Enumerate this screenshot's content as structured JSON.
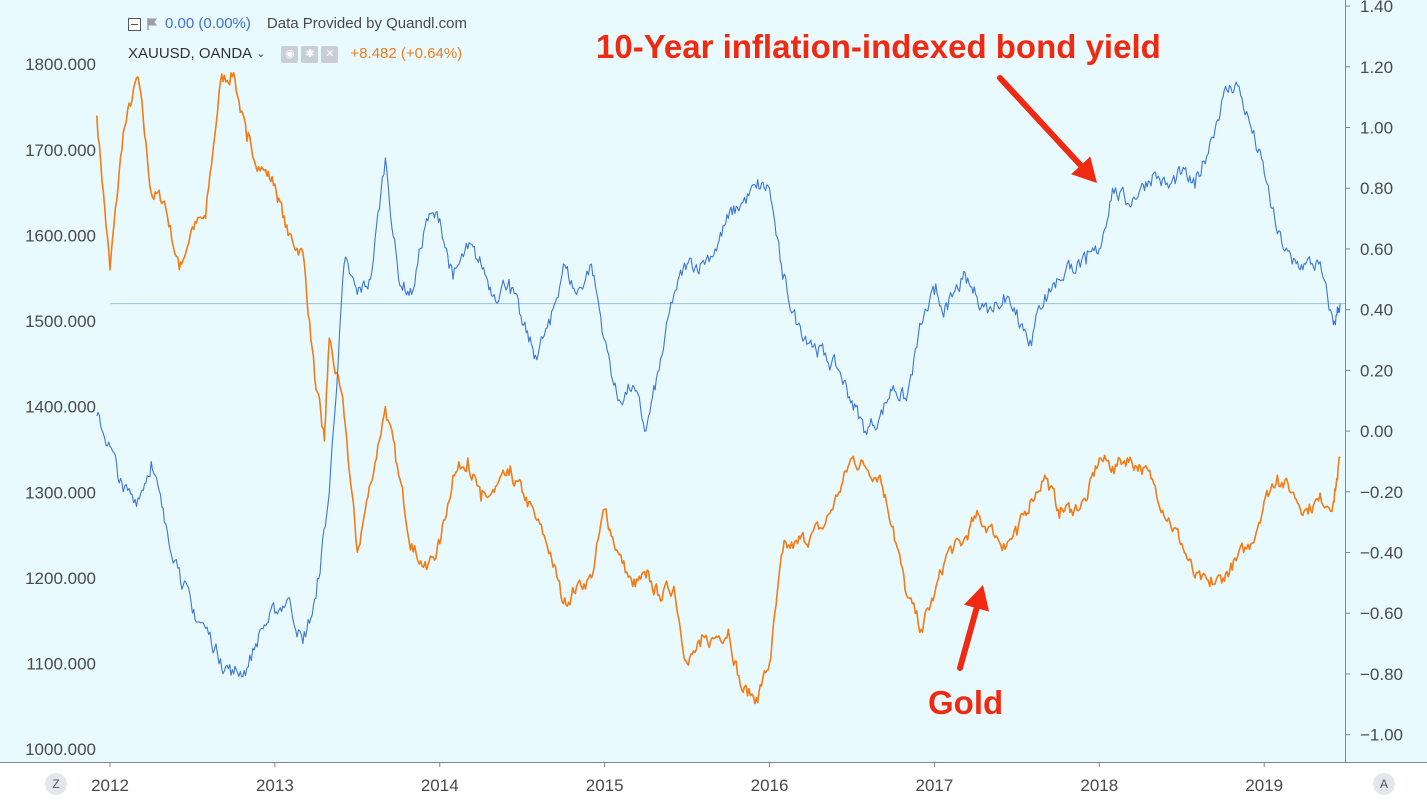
{
  "legend": {
    "row1": {
      "value": "0.00 (0.00%)",
      "source": "Data Provided by Quandl.com"
    },
    "row2": {
      "symbol": "XAUUSD, OANDA",
      "change": "+8.482 (+0.64%)"
    }
  },
  "annotations": {
    "bond_label": "10-Year inflation-indexed bond yield",
    "gold_label": "Gold"
  },
  "controls": {
    "left_corner": "Z",
    "right_corner": "A"
  },
  "colors": {
    "background": "#e8fafd",
    "gold": "#f47b16",
    "bond": "#3c76d6",
    "arrow": "#f02a12",
    "axis_line": "#7c8790"
  },
  "chart_data": {
    "type": "line",
    "title": "",
    "xlabel": "",
    "x_ticks": [
      "2012",
      "2013",
      "2014",
      "2015",
      "2016",
      "2017",
      "2018",
      "2019"
    ],
    "left_axis": {
      "ticks": [
        "1800.000",
        "1700.000",
        "1600.000",
        "1500.000",
        "1400.000",
        "1300.000",
        "1200.000",
        "1100.000",
        "1000.000"
      ],
      "range": [
        985,
        1875
      ]
    },
    "right_axis": {
      "ticks": [
        "1.40",
        "1.20",
        "1.00",
        "0.80",
        "0.60",
        "0.40",
        "0.20",
        "0.00",
        "−0.20",
        "−0.40",
        "−0.60",
        "−0.80",
        "−1.00"
      ],
      "range": [
        -1.09,
        1.42
      ]
    },
    "crosshair": {
      "axis": "right",
      "value": 0.42
    },
    "series": [
      {
        "axis": "left",
        "x": [
          2011.92,
          2012.0,
          2012.08,
          2012.17,
          2012.25,
          2012.33,
          2012.42,
          2012.5,
          2012.58,
          2012.67,
          2012.75,
          2012.83,
          2012.92,
          2013.0,
          2013.08,
          2013.17,
          2013.25,
          2013.3,
          2013.33,
          2013.42,
          2013.5,
          2013.58,
          2013.67,
          2013.75,
          2013.83,
          2013.92,
          2014.0,
          2014.08,
          2014.17,
          2014.25,
          2014.33,
          2014.42,
          2014.5,
          2014.58,
          2014.67,
          2014.75,
          2014.83,
          2014.92,
          2015.0,
          2015.08,
          2015.17,
          2015.25,
          2015.33,
          2015.42,
          2015.5,
          2015.58,
          2015.67,
          2015.75,
          2015.83,
          2015.92,
          2016.0,
          2016.08,
          2016.17,
          2016.25,
          2016.33,
          2016.42,
          2016.5,
          2016.58,
          2016.67,
          2016.75,
          2016.83,
          2016.92,
          2017.0,
          2017.08,
          2017.17,
          2017.25,
          2017.33,
          2017.42,
          2017.5,
          2017.58,
          2017.67,
          2017.75,
          2017.83,
          2017.92,
          2018.0,
          2018.08,
          2018.17,
          2018.25,
          2018.33,
          2018.42,
          2018.5,
          2018.58,
          2018.67,
          2018.75,
          2018.83,
          2018.92,
          2019.0,
          2019.08,
          2019.17,
          2019.25,
          2019.33,
          2019.42,
          2019.46
        ],
        "values": [
          1740,
          1560,
          1720,
          1785,
          1650,
          1640,
          1560,
          1610,
          1620,
          1780,
          1790,
          1710,
          1680,
          1660,
          1600,
          1580,
          1420,
          1360,
          1480,
          1390,
          1230,
          1310,
          1400,
          1320,
          1240,
          1210,
          1240,
          1320,
          1340,
          1290,
          1300,
          1320,
          1300,
          1270,
          1230,
          1170,
          1190,
          1200,
          1280,
          1230,
          1190,
          1200,
          1180,
          1190,
          1100,
          1120,
          1130,
          1140,
          1070,
          1060,
          1100,
          1230,
          1240,
          1250,
          1260,
          1300,
          1340,
          1330,
          1320,
          1260,
          1180,
          1140,
          1180,
          1230,
          1240,
          1270,
          1260,
          1240,
          1250,
          1290,
          1320,
          1280,
          1280,
          1290,
          1340,
          1330,
          1340,
          1330,
          1310,
          1270,
          1240,
          1200,
          1190,
          1200,
          1220,
          1240,
          1290,
          1320,
          1300,
          1280,
          1290,
          1290,
          1340
        ]
      },
      {
        "axis": "right",
        "x": [
          2011.92,
          2012.0,
          2012.08,
          2012.17,
          2012.25,
          2012.33,
          2012.42,
          2012.5,
          2012.58,
          2012.67,
          2012.75,
          2012.83,
          2012.92,
          2013.0,
          2013.08,
          2013.17,
          2013.25,
          2013.33,
          2013.42,
          2013.5,
          2013.58,
          2013.67,
          2013.75,
          2013.83,
          2013.92,
          2014.0,
          2014.08,
          2014.17,
          2014.25,
          2014.33,
          2014.42,
          2014.5,
          2014.58,
          2014.67,
          2014.75,
          2014.83,
          2014.92,
          2015.0,
          2015.08,
          2015.17,
          2015.25,
          2015.33,
          2015.42,
          2015.5,
          2015.58,
          2015.67,
          2015.75,
          2015.83,
          2015.92,
          2016.0,
          2016.08,
          2016.17,
          2016.25,
          2016.33,
          2016.42,
          2016.5,
          2016.58,
          2016.67,
          2016.75,
          2016.83,
          2016.92,
          2017.0,
          2017.08,
          2017.17,
          2017.25,
          2017.33,
          2017.42,
          2017.5,
          2017.58,
          2017.67,
          2017.75,
          2017.83,
          2017.92,
          2018.0,
          2018.08,
          2018.17,
          2018.25,
          2018.33,
          2018.42,
          2018.5,
          2018.58,
          2018.67,
          2018.75,
          2018.83,
          2018.92,
          2019.0,
          2019.08,
          2019.17,
          2019.25,
          2019.33,
          2019.42,
          2019.46
        ],
        "values": [
          0.05,
          -0.05,
          -0.2,
          -0.22,
          -0.1,
          -0.3,
          -0.45,
          -0.6,
          -0.65,
          -0.75,
          -0.8,
          -0.78,
          -0.65,
          -0.6,
          -0.55,
          -0.7,
          -0.55,
          -0.2,
          0.55,
          0.45,
          0.5,
          0.9,
          0.5,
          0.45,
          0.7,
          0.7,
          0.5,
          0.6,
          0.55,
          0.45,
          0.5,
          0.35,
          0.25,
          0.35,
          0.55,
          0.45,
          0.55,
          0.3,
          0.1,
          0.15,
          0.0,
          0.2,
          0.45,
          0.55,
          0.55,
          0.6,
          0.7,
          0.75,
          0.8,
          0.8,
          0.5,
          0.35,
          0.3,
          0.25,
          0.2,
          0.1,
          0.0,
          0.05,
          0.15,
          0.1,
          0.35,
          0.45,
          0.4,
          0.5,
          0.45,
          0.4,
          0.45,
          0.4,
          0.3,
          0.45,
          0.5,
          0.55,
          0.55,
          0.6,
          0.8,
          0.75,
          0.8,
          0.85,
          0.8,
          0.85,
          0.8,
          0.95,
          1.1,
          1.15,
          1.0,
          0.85,
          0.65,
          0.55,
          0.55,
          0.55,
          0.35,
          0.42
        ]
      }
    ]
  }
}
